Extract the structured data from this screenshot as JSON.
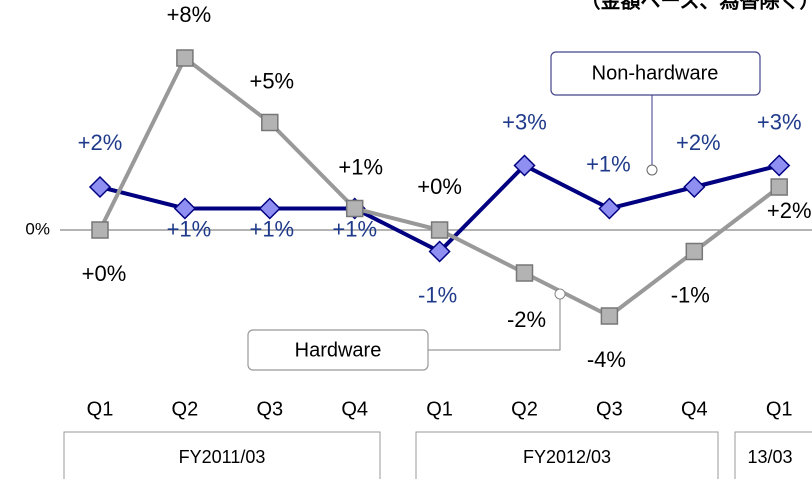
{
  "chart_data": {
    "type": "line",
    "note": "（金額ベース、為替除く）",
    "categories": [
      "Q1",
      "Q2",
      "Q3",
      "Q4",
      "Q1",
      "Q2",
      "Q3",
      "Q4",
      "Q1"
    ],
    "groups": [
      "FY2011/03",
      "FY2012/03",
      "13/03"
    ],
    "ylim": [
      -6,
      10
    ],
    "yticks": [
      {
        "value": 0,
        "label": "0%"
      }
    ],
    "series": [
      {
        "name": "Non-hardware",
        "color": "#000080",
        "marker_color": "#8f8ff2",
        "label_color": "#1f3a8a",
        "values": [
          2,
          1,
          1,
          1,
          -1,
          3,
          1,
          2,
          3
        ],
        "value_labels": [
          "+2%",
          "+1%",
          "+1%",
          "+1%",
          "-1%",
          "+3%",
          "+1%",
          "+2%",
          "+3%"
        ]
      },
      {
        "name": "Hardware",
        "color": "#999999",
        "marker_color": "#b3b3b3",
        "label_color": "#000000",
        "values": [
          0,
          8,
          5,
          1,
          0,
          -2,
          -4,
          -1,
          2
        ],
        "value_labels": [
          "+0%",
          "+8%",
          "+5%",
          "+1%",
          "+0%",
          "-2%",
          "-4%",
          "-1%",
          "+2%"
        ]
      }
    ]
  }
}
